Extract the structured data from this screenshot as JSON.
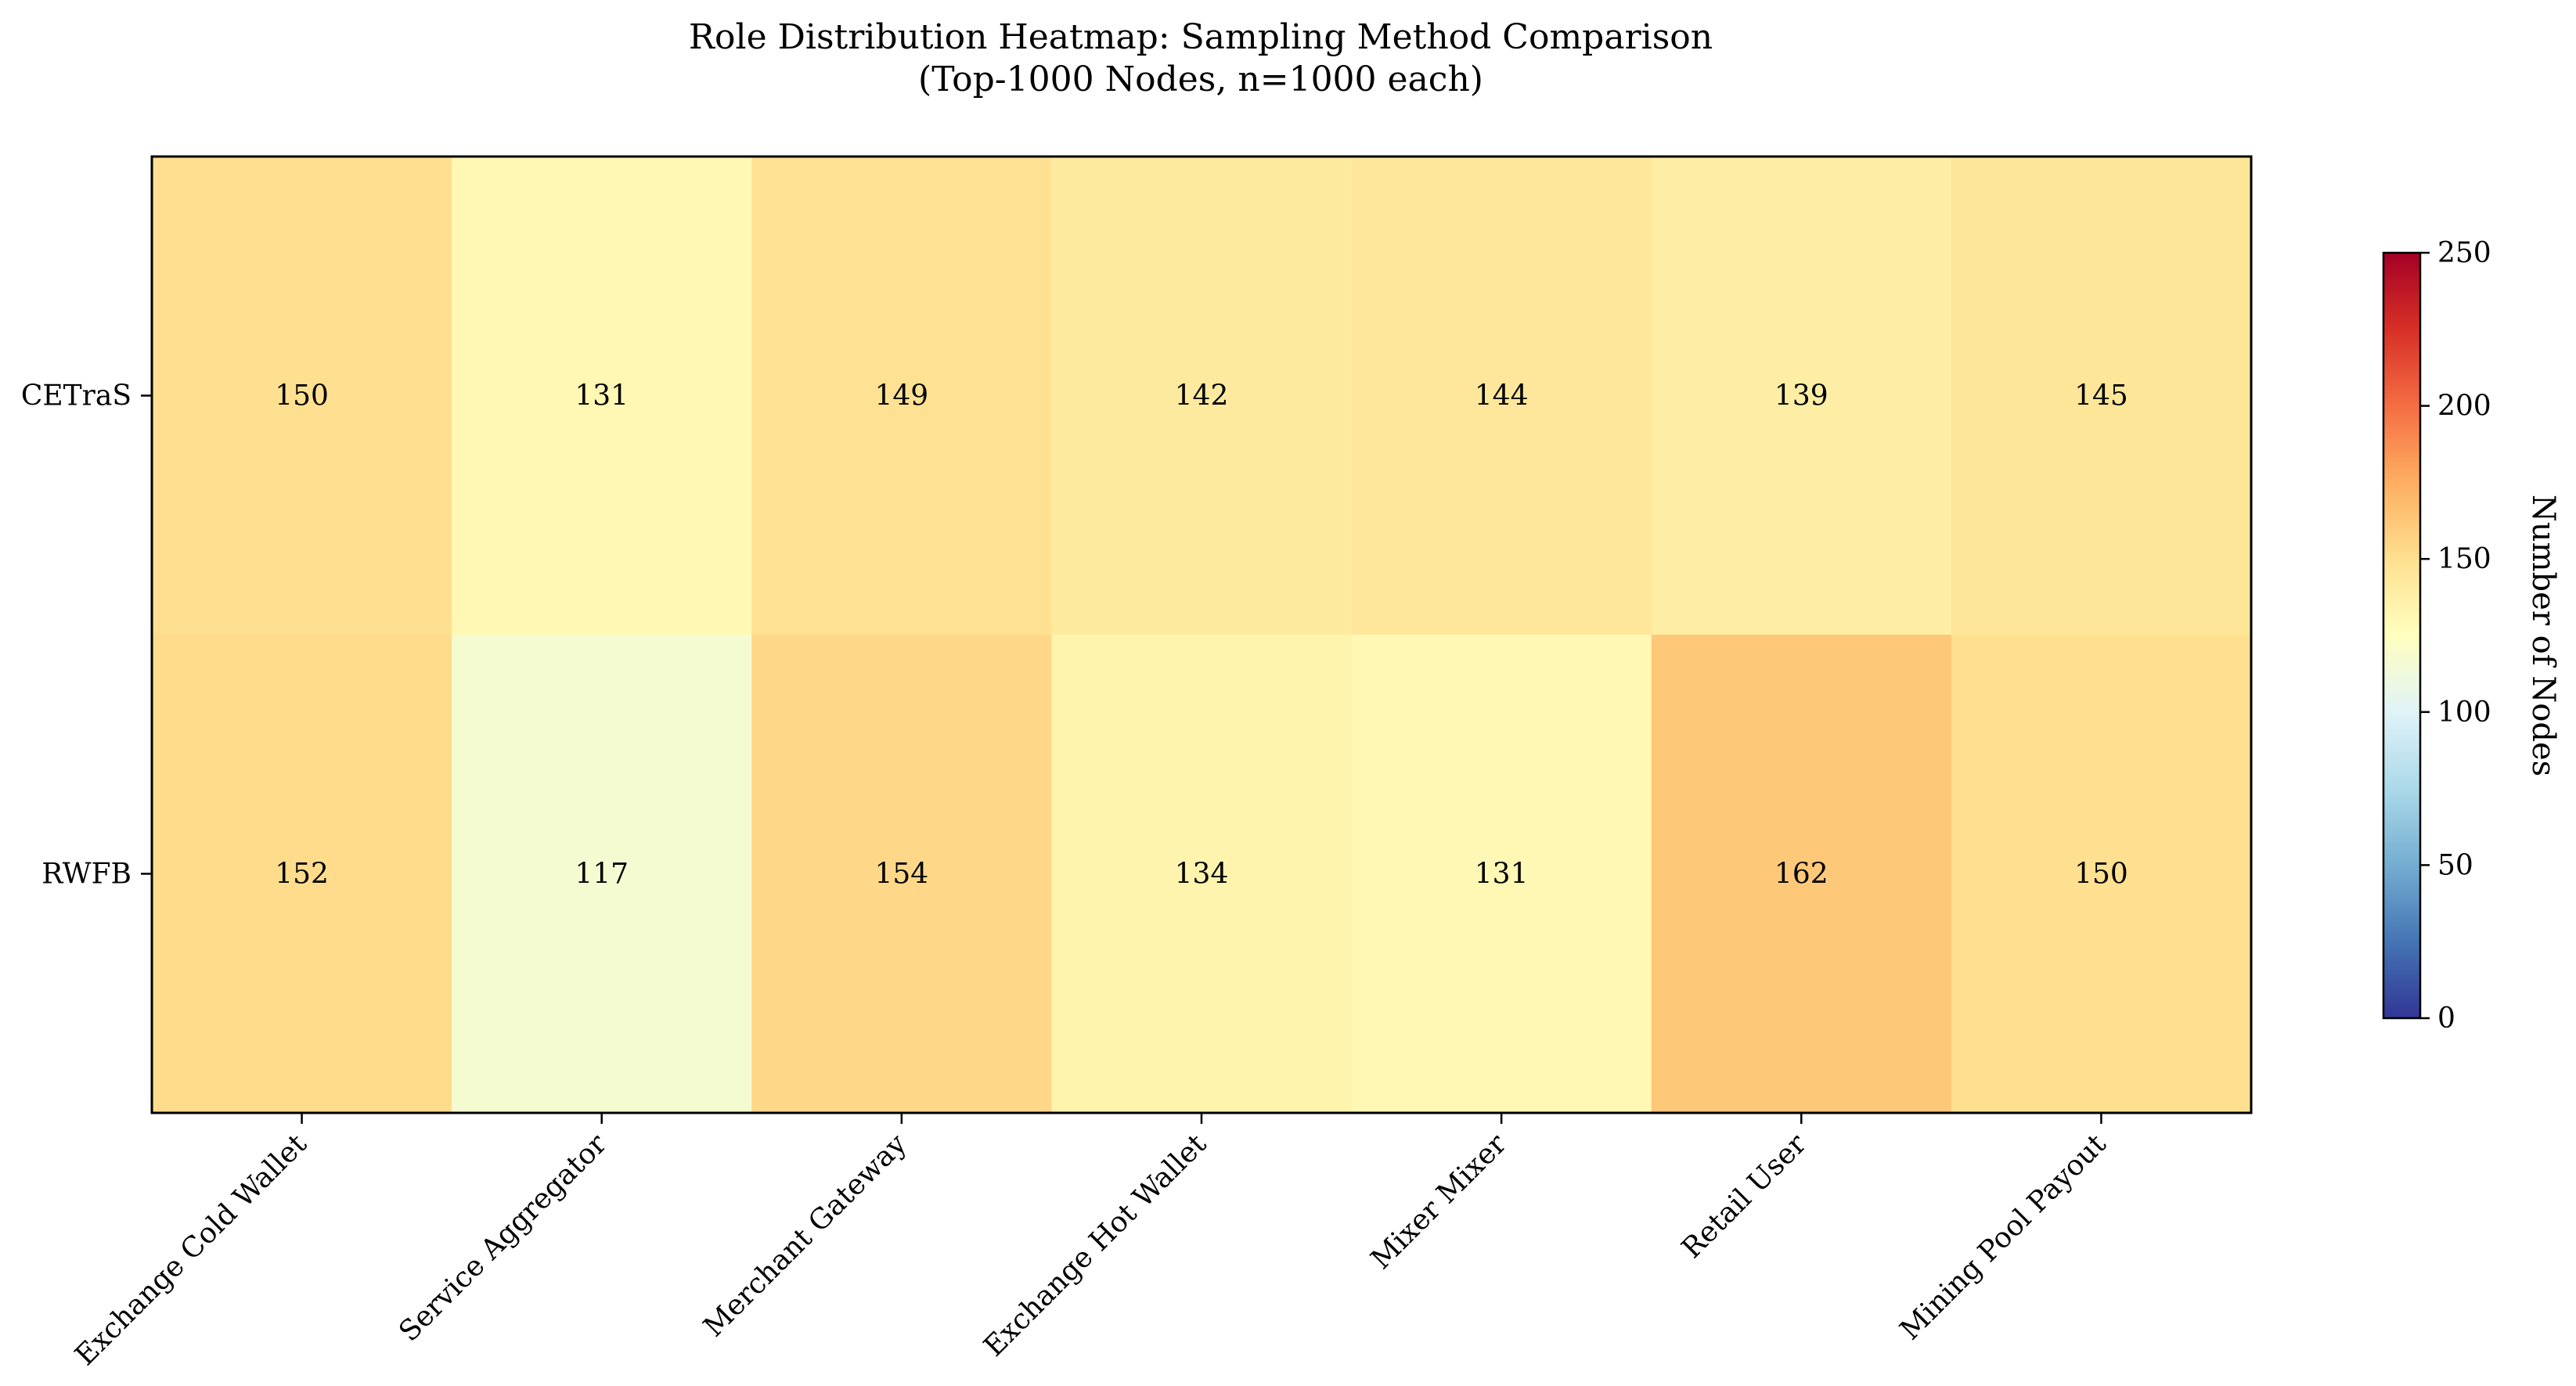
{
  "chart_data": {
    "type": "heatmap",
    "title": "Role Distribution Heatmap: Sampling Method Comparison",
    "subtitle": "(Top-1000 Nodes, n=1000 each)",
    "rows": [
      "CETraS",
      "RWFB"
    ],
    "columns": [
      "Exchange Cold Wallet",
      "Service Aggregator",
      "Merchant Gateway",
      "Exchange Hot Wallet",
      "Mixer Mixer",
      "Retail User",
      "Mining Pool Payout"
    ],
    "values": [
      [
        150,
        131,
        149,
        142,
        144,
        139,
        145
      ],
      [
        152,
        117,
        154,
        134,
        131,
        162,
        150
      ]
    ],
    "colormap": "RdYlBu_r",
    "vmin": 0,
    "vmax": 250,
    "colorbar": {
      "label": "Number of Nodes",
      "ticks": [
        "0",
        "50",
        "100",
        "150",
        "200",
        "250"
      ]
    }
  }
}
